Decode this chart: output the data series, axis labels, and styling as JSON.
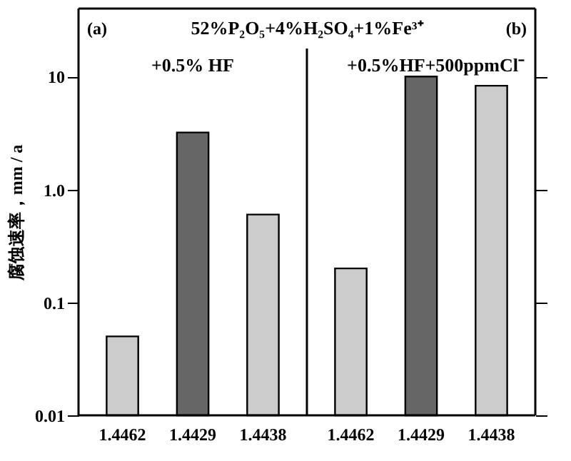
{
  "chart_data": [
    {
      "type": "bar",
      "title": "52%P₂O₅+4%H₂SO₄+1%Fe³⁺",
      "subtitle": "+0.5% HF",
      "annotations": [
        "(a)"
      ],
      "ylabel": "腐蚀速率，mm / a",
      "categories": [
        "1.4462",
        "1.4429",
        "1.4438"
      ],
      "values": [
        0.05,
        3.2,
        0.6
      ],
      "colors": [
        "#cccccc",
        "#666666",
        "#cccccc"
      ],
      "log": true,
      "ylim": [
        0.01,
        40
      ],
      "yticks": [
        0.01,
        0.1,
        {
          "value": 1,
          "label": "1.0"
        },
        10
      ]
    },
    {
      "type": "bar",
      "subtitle": "+0.5%HF+500ppmCl⁻",
      "annotations": [
        "(b)"
      ],
      "categories": [
        "1.4462",
        "1.4429",
        "1.4438"
      ],
      "values": [
        0.2,
        10,
        8.3
      ],
      "colors": [
        "#cccccc",
        "#666666",
        "#cccccc"
      ],
      "log": true,
      "ylim": [
        0.01,
        40
      ],
      "yticks": [
        0.01,
        0.1,
        1,
        10
      ],
      "tick_labels": "x"
    }
  ]
}
